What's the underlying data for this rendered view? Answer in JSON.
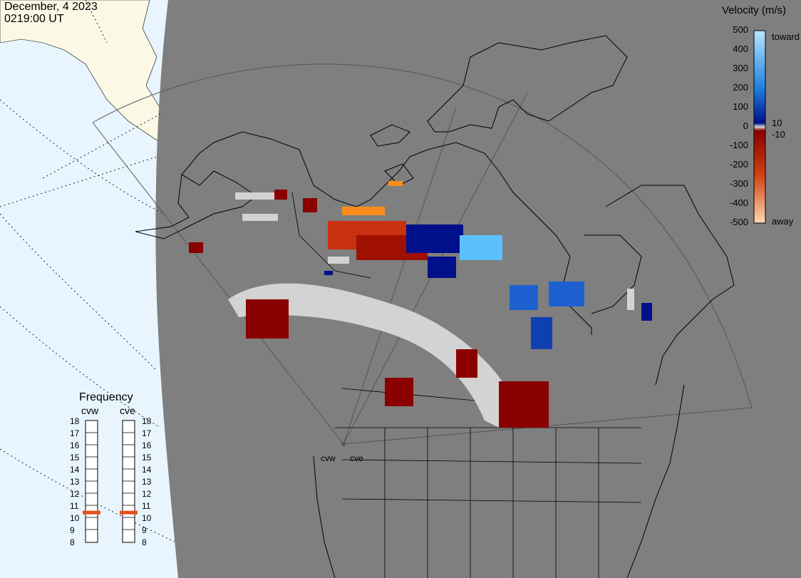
{
  "header": {
    "date": "December, 4 2023",
    "time": "0219:00 UT"
  },
  "legend": {
    "title": "Velocity (m/s)",
    "ticks": [
      "500",
      "400",
      "300",
      "200",
      "100",
      "0",
      "-100",
      "-200",
      "-300",
      "-400",
      "-500"
    ],
    "inner_pos": "10",
    "inner_neg": "-10",
    "toward_label": "toward",
    "away_label": "away",
    "colors": {
      "toward_high": "#b8e6ff",
      "toward_mid": "#1f7fe0",
      "toward_low": "#00108a",
      "zero": "#d9d9d9",
      "away_low": "#8a0000",
      "away_mid": "#d04010",
      "away_high": "#ffd8b0",
      "ground_scatter": "#d3d3d3"
    }
  },
  "frequency": {
    "title": "Frequency",
    "radars": [
      {
        "name": "cvw",
        "value_mhz": 11
      },
      {
        "name": "cve",
        "value_mhz": 11
      }
    ],
    "scale": [
      "18",
      "17",
      "16",
      "15",
      "14",
      "13",
      "12",
      "11",
      "10",
      "9",
      "8"
    ],
    "marker_color": "#e8501a"
  },
  "sites": [
    "cvw",
    "cve"
  ]
}
